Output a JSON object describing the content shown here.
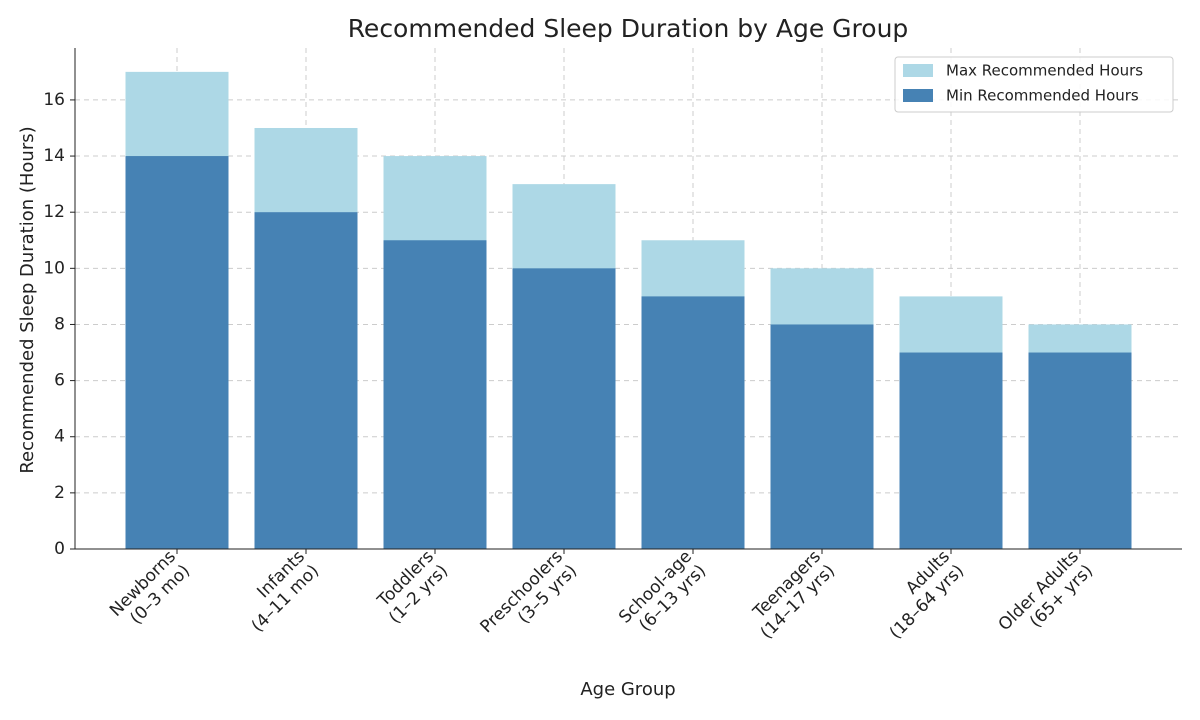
{
  "chart_data": {
    "type": "bar",
    "title": "Recommended Sleep Duration by Age Group",
    "xlabel": "Age Group",
    "ylabel": "Recommended Sleep Duration (Hours)",
    "categories": [
      "Newborns\n(0–3 mo)",
      "Infants\n(4–11 mo)",
      "Toddlers\n(1–2 yrs)",
      "Preschoolers\n(3–5 yrs)",
      "School-age\n(6–13 yrs)",
      "Teenagers\n(14–17 yrs)",
      "Adults\n(18–64 yrs)",
      "Older Adults\n(65+ yrs)"
    ],
    "series": [
      {
        "name": "Max Recommended Hours",
        "color": "#add8e6",
        "values": [
          17,
          15,
          14,
          13,
          11,
          10,
          9,
          8
        ]
      },
      {
        "name": "Min Recommended Hours",
        "color": "#4682b4",
        "values": [
          14,
          12,
          11,
          10,
          9,
          8,
          7,
          7
        ]
      }
    ],
    "ylim": [
      0,
      17.85
    ],
    "yticks": [
      0,
      2,
      4,
      6,
      8,
      10,
      12,
      14,
      16
    ],
    "grid": true,
    "legend": "upper right"
  }
}
